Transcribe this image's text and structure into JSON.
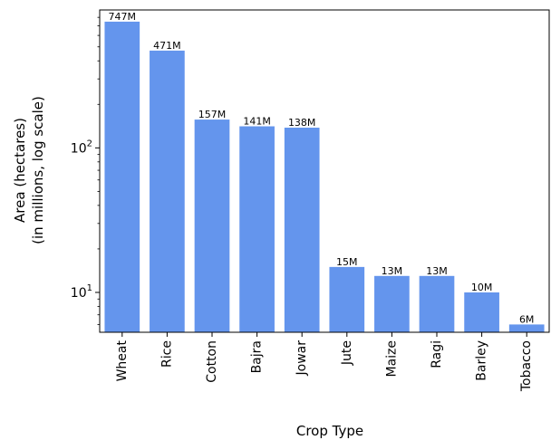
{
  "chart_data": {
    "type": "bar",
    "categories": [
      "Wheat",
      "Rice",
      "Cotton",
      "Bajra",
      "Jowar",
      "Jute",
      "Maize",
      "Ragi",
      "Barley",
      "Tobacco"
    ],
    "values": [
      747,
      471,
      157,
      141,
      138,
      15,
      13,
      13,
      10,
      6
    ],
    "data_labels": [
      "747M",
      "471M",
      "157M",
      "141M",
      "138M",
      "15M",
      "13M",
      "13M",
      "10M",
      "6M"
    ],
    "xlabel": "Crop Type",
    "ylabel_lines": [
      "Area (hectares)",
      "(in millions, log scale)"
    ],
    "yscale": "log",
    "ylim": [
      5.3,
      900
    ],
    "yticks": [
      {
        "value": 10,
        "base": "10",
        "exp": "1"
      },
      {
        "value": 100,
        "base": "10",
        "exp": "2"
      }
    ],
    "grid": false,
    "bar_color": "#6495ED"
  }
}
